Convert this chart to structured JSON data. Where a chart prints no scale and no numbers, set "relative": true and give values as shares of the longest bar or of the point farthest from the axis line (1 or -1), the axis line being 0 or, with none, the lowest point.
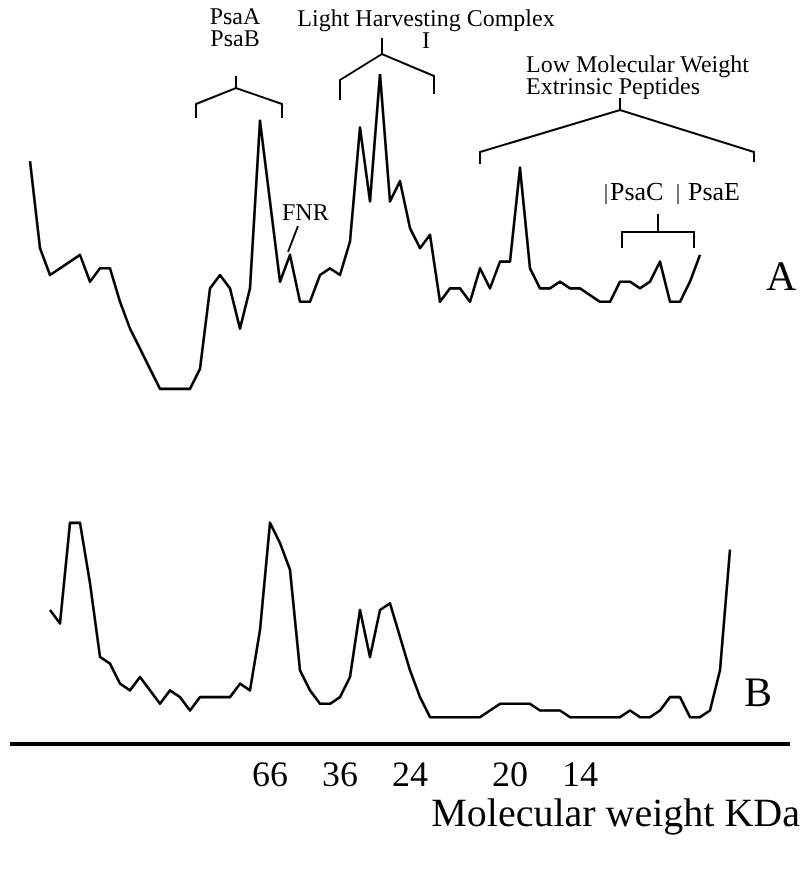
{
  "chart_data": {
    "type": "line",
    "relative": true,
    "xlabel": "Molecular weight KDa",
    "categories": [
      null,
      null,
      null,
      null,
      null,
      null,
      null,
      null,
      null,
      null,
      null,
      null,
      null,
      null,
      null,
      null,
      null,
      null,
      null,
      null,
      null,
      null,
      null,
      null,
      null,
      null,
      "66",
      null,
      null,
      null,
      null,
      null,
      null,
      "36",
      null,
      null,
      null,
      null,
      null,
      null,
      "24",
      null,
      null,
      null,
      null,
      null,
      null,
      null,
      null,
      null,
      "20",
      null,
      null,
      null,
      null,
      null,
      null,
      "14",
      null,
      null,
      null,
      null,
      null,
      null,
      null,
      null,
      null,
      null,
      null,
      null,
      null,
      null,
      null,
      null,
      null,
      null,
      null,
      null,
      null
    ],
    "series": [
      {
        "name": "A",
        "color": "#000000",
        "values": [
          null,
          null,
          0.87,
          0.74,
          0.7,
          0.71,
          0.72,
          0.73,
          0.69,
          0.71,
          0.71,
          0.66,
          0.62,
          0.59,
          0.56,
          0.53,
          0.53,
          0.53,
          0.53,
          0.56,
          0.68,
          0.7,
          0.68,
          0.62,
          0.68,
          0.93,
          0.81,
          0.69,
          0.73,
          0.66,
          0.66,
          0.7,
          0.71,
          0.7,
          0.75,
          0.92,
          0.81,
          1,
          0.81,
          0.84,
          0.77,
          0.74,
          0.76,
          0.66,
          0.68,
          0.68,
          0.66,
          0.71,
          0.68,
          0.72,
          0.72,
          0.86,
          0.71,
          0.68,
          0.68,
          0.69,
          0.68,
          0.68,
          0.67,
          0.66,
          0.66,
          0.69,
          0.69,
          0.68,
          0.69,
          0.72,
          0.66,
          0.66,
          0.69,
          0.73,
          null,
          null,
          null,
          null,
          null,
          null,
          null,
          null,
          null
        ]
      },
      {
        "name": "B",
        "color": "#000000",
        "values": [
          null,
          null,
          null,
          null,
          0.2,
          0.18,
          0.33,
          0.33,
          0.24,
          0.13,
          0.12,
          0.09,
          0.08,
          0.1,
          0.08,
          0.06,
          0.08,
          0.07,
          0.05,
          0.07,
          0.07,
          0.07,
          0.07,
          0.09,
          0.08,
          0.17,
          0.33,
          0.3,
          0.26,
          0.11,
          0.08,
          0.06,
          0.06,
          0.07,
          0.1,
          0.2,
          0.13,
          0.2,
          0.21,
          0.16,
          0.11,
          0.07,
          0.04,
          0.04,
          0.04,
          0.04,
          0.04,
          0.04,
          0.05,
          0.06,
          0.06,
          0.06,
          0.06,
          0.05,
          0.05,
          0.05,
          0.04,
          0.04,
          0.04,
          0.04,
          0.04,
          0.04,
          0.05,
          0.04,
          0.04,
          0.05,
          0.07,
          0.07,
          0.04,
          0.04,
          0.05,
          0.11,
          0.29,
          null,
          null,
          null,
          null,
          null,
          null
        ]
      }
    ],
    "annotations": [
      "PsaA PsaB",
      "Light Harvesting Complex I",
      "FNR",
      "Low Molecular Weight Extrinsic Peptides",
      "PsaC",
      "PsaE"
    ]
  }
}
